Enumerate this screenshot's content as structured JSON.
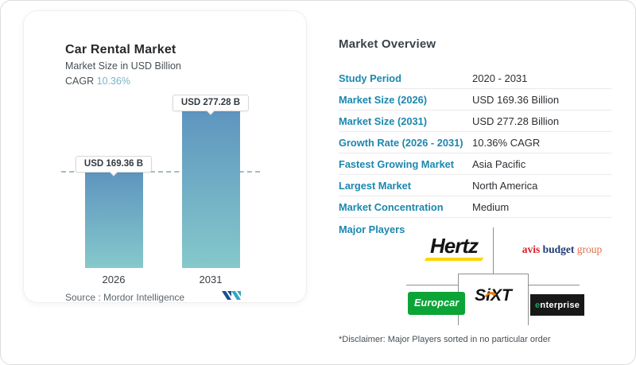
{
  "chart_card": {
    "title": "Car Rental Market",
    "subtitle": "Market Size in USD Billion",
    "cagr_label": "CAGR",
    "cagr_value": "10.36%",
    "bar_labels": [
      "USD 169.36 B",
      "USD 277.28 B"
    ],
    "years": [
      "2026",
      "2031"
    ],
    "source_label": "Source :",
    "source_value": "Mordor Intelligence"
  },
  "chart_data": {
    "type": "bar",
    "categories": [
      "2026",
      "2031"
    ],
    "values": [
      169.36,
      277.28
    ],
    "title": "Car Rental Market",
    "ylabel": "Market Size in USD Billion",
    "data_labels": [
      "USD 169.36 B",
      "USD 277.28 B"
    ],
    "annotations": {
      "cagr": "10.36%",
      "dashed_reference_line_at": 169.36
    },
    "legend": "none",
    "grid": "off",
    "bar_gradient_top": "#5e95bf",
    "bar_gradient_bottom": "#85c9cb"
  },
  "overview": {
    "heading": "Market Overview",
    "rows": [
      {
        "label": "Study Period",
        "value": "2020 - 2031"
      },
      {
        "label": "Market Size (2026)",
        "value": "USD 169.36 Billion"
      },
      {
        "label": "Market Size (2031)",
        "value": "USD 277.28 Billion"
      },
      {
        "label": "Growth Rate (2026 - 2031)",
        "value": "10.36% CAGR"
      },
      {
        "label": "Fastest Growing Market",
        "value": "Asia Pacific"
      },
      {
        "label": "Largest Market",
        "value": "North America"
      },
      {
        "label": "Market Concentration",
        "value": "Medium"
      }
    ],
    "major_players_label": "Major Players",
    "players": {
      "hertz": "Hertz",
      "avis_1": "avis",
      "avis_2": "budget",
      "avis_3": "group",
      "europcar": "Europcar",
      "sixt": "SiXT",
      "enterprise_first": "e",
      "enterprise_rest": "nterprise"
    },
    "disclaimer": "*Disclaimer: Major Players sorted in no particular order"
  },
  "colors": {
    "accent_blue": "#1b87ae",
    "cagr_blue": "#7cb3c9",
    "bar_top": "#5e95bf",
    "bar_bottom": "#85c9cb",
    "hertz_yellow": "#ffd400",
    "avis_red": "#d2232a",
    "avis_navy": "#1f3b73",
    "avis_orange": "#e0704a",
    "europcar_green": "#0ca437",
    "sixt_orange": "#f07d00",
    "enterprise_green": "#17a860",
    "mordor_navy": "#1d4f91",
    "mordor_teal": "#31a8c4"
  }
}
